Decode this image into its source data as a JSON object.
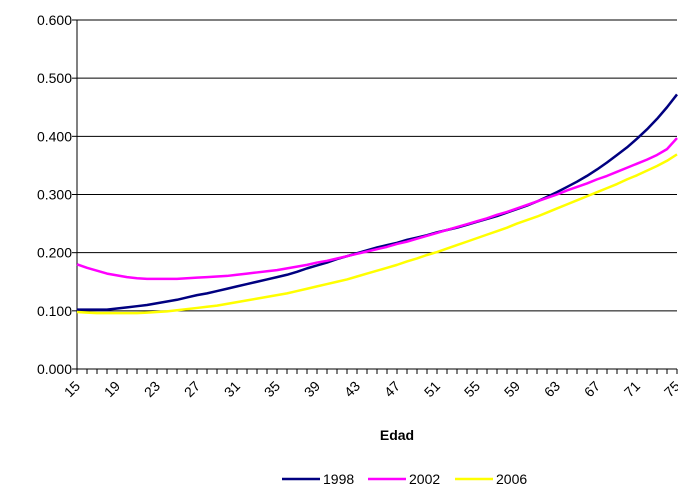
{
  "chart_data": {
    "type": "line",
    "title": "",
    "xlabel": "Edad",
    "ylabel": "",
    "x": [
      15,
      16,
      17,
      18,
      19,
      20,
      21,
      22,
      23,
      24,
      25,
      26,
      27,
      28,
      29,
      30,
      31,
      32,
      33,
      34,
      35,
      36,
      37,
      38,
      39,
      40,
      41,
      42,
      43,
      44,
      45,
      46,
      47,
      48,
      49,
      50,
      51,
      52,
      53,
      54,
      55,
      56,
      57,
      58,
      59,
      60,
      61,
      62,
      63,
      64,
      65,
      66,
      67,
      68,
      69,
      70,
      71,
      72,
      73,
      74,
      75
    ],
    "x_tick_labels": [
      "15",
      "19",
      "23",
      "27",
      "31",
      "35",
      "39",
      "43",
      "47",
      "51",
      "55",
      "59",
      "63",
      "67",
      "71",
      "75"
    ],
    "xlim": [
      15,
      75
    ],
    "ylim": [
      0,
      0.6
    ],
    "y_tick_values": [
      0,
      0.1,
      0.2,
      0.3,
      0.4,
      0.5,
      0.6
    ],
    "y_tick_labels": [
      "0.000",
      "0.100",
      "0.200",
      "0.300",
      "0.400",
      "0.500",
      "0.600"
    ],
    "grid": "horizontal",
    "legend_position": "bottom",
    "series": [
      {
        "name": "1998",
        "color": "#000080",
        "values": [
          0.102,
          0.102,
          0.102,
          0.102,
          0.104,
          0.106,
          0.108,
          0.11,
          0.113,
          0.116,
          0.119,
          0.123,
          0.127,
          0.13,
          0.134,
          0.138,
          0.142,
          0.146,
          0.15,
          0.154,
          0.158,
          0.162,
          0.167,
          0.173,
          0.178,
          0.183,
          0.189,
          0.194,
          0.199,
          0.204,
          0.209,
          0.213,
          0.217,
          0.222,
          0.226,
          0.23,
          0.235,
          0.239,
          0.243,
          0.248,
          0.253,
          0.258,
          0.263,
          0.269,
          0.275,
          0.281,
          0.288,
          0.296,
          0.304,
          0.313,
          0.322,
          0.332,
          0.343,
          0.355,
          0.368,
          0.381,
          0.396,
          0.412,
          0.43,
          0.45,
          0.472
        ]
      },
      {
        "name": "2002",
        "color": "#ff00ff",
        "values": [
          0.18,
          0.174,
          0.169,
          0.164,
          0.161,
          0.158,
          0.156,
          0.155,
          0.155,
          0.155,
          0.155,
          0.156,
          0.157,
          0.158,
          0.159,
          0.16,
          0.162,
          0.164,
          0.166,
          0.168,
          0.17,
          0.173,
          0.176,
          0.179,
          0.183,
          0.186,
          0.19,
          0.194,
          0.198,
          0.202,
          0.206,
          0.21,
          0.215,
          0.219,
          0.224,
          0.229,
          0.234,
          0.239,
          0.244,
          0.249,
          0.254,
          0.259,
          0.265,
          0.27,
          0.276,
          0.282,
          0.288,
          0.294,
          0.3,
          0.307,
          0.313,
          0.319,
          0.326,
          0.332,
          0.339,
          0.346,
          0.353,
          0.36,
          0.368,
          0.378,
          0.397
        ]
      },
      {
        "name": "2006",
        "color": "#ffff00",
        "values": [
          0.098,
          0.097,
          0.096,
          0.096,
          0.096,
          0.096,
          0.096,
          0.097,
          0.098,
          0.099,
          0.101,
          0.103,
          0.105,
          0.107,
          0.109,
          0.112,
          0.115,
          0.118,
          0.121,
          0.124,
          0.127,
          0.13,
          0.134,
          0.138,
          0.142,
          0.146,
          0.15,
          0.154,
          0.159,
          0.164,
          0.169,
          0.174,
          0.179,
          0.185,
          0.19,
          0.196,
          0.201,
          0.207,
          0.213,
          0.219,
          0.225,
          0.231,
          0.237,
          0.243,
          0.25,
          0.256,
          0.262,
          0.269,
          0.276,
          0.283,
          0.29,
          0.297,
          0.304,
          0.311,
          0.318,
          0.326,
          0.333,
          0.341,
          0.349,
          0.358,
          0.369
        ]
      }
    ]
  }
}
